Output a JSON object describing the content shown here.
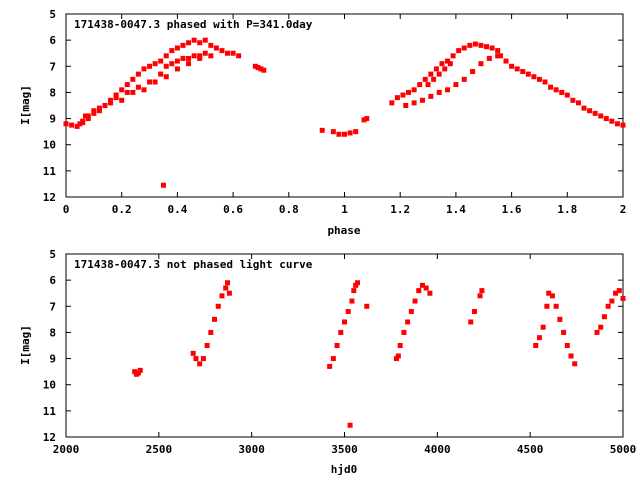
{
  "chart_data": [
    {
      "type": "scatter",
      "title": "171438-0047.3 phased with P=341.0day",
      "xlabel": "phase",
      "ylabel": "I[mag]",
      "xlim": [
        0,
        2
      ],
      "ylim": [
        5,
        12
      ],
      "y_inverted": true,
      "xticks": [
        "0",
        "0.2",
        "0.4",
        "0.6",
        "0.8",
        "1",
        "1.2",
        "1.4",
        "1.6",
        "1.8",
        "2"
      ],
      "yticks": [
        "5",
        "6",
        "7",
        "8",
        "9",
        "10",
        "11",
        "12"
      ],
      "color": "#ff0000",
      "series": [
        {
          "x": [
            0.0,
            0.02,
            0.04,
            0.05,
            0.06,
            0.07,
            0.08,
            0.1,
            0.12,
            0.14,
            0.16,
            0.18,
            0.2,
            0.22,
            0.24,
            0.26,
            0.28,
            0.3,
            0.32,
            0.34,
            0.36,
            0.38,
            0.4,
            0.42,
            0.44,
            0.46,
            0.48,
            0.5,
            0.52,
            0.54,
            0.56,
            0.58,
            0.6,
            0.62,
            0.34,
            0.36,
            0.38,
            0.4,
            0.42,
            0.44,
            0.46,
            0.48,
            0.5,
            0.2,
            0.24,
            0.28,
            0.32,
            0.36,
            0.4,
            0.44,
            0.48,
            0.52,
            0.06,
            0.08,
            0.1,
            0.12,
            0.14,
            0.16,
            0.18,
            0.22,
            0.26,
            0.3,
            0.68,
            0.69,
            0.7,
            0.71,
            0.35,
            0.92,
            0.96,
            0.98,
            1.0,
            1.02,
            1.04,
            1.07,
            1.08,
            1.17,
            1.19,
            1.21,
            1.23,
            1.25,
            1.27,
            1.29,
            1.31,
            1.33,
            1.35,
            1.37,
            1.39,
            1.41,
            1.43,
            1.45,
            1.47,
            1.49,
            1.51,
            1.53,
            1.55,
            1.22,
            1.25,
            1.28,
            1.31,
            1.34,
            1.37,
            1.4,
            1.43,
            1.46,
            1.49,
            1.52,
            1.55,
            1.3,
            1.32,
            1.34,
            1.36,
            1.38,
            1.56,
            1.58,
            1.6,
            1.62,
            1.64,
            1.66,
            1.68,
            1.7,
            1.72,
            1.74,
            1.76,
            1.78,
            1.8,
            1.82,
            1.84,
            1.86,
            1.88,
            1.9,
            1.92,
            1.94,
            1.96,
            1.98,
            2.0
          ],
          "y": [
            9.2,
            9.25,
            9.3,
            9.2,
            9.15,
            8.9,
            9.0,
            8.8,
            8.7,
            8.5,
            8.3,
            8.1,
            7.9,
            7.7,
            7.5,
            7.3,
            7.1,
            7.0,
            6.9,
            6.8,
            6.6,
            6.4,
            6.3,
            6.2,
            6.1,
            6.0,
            6.1,
            6.0,
            6.2,
            6.3,
            6.4,
            6.5,
            6.5,
            6.6,
            7.3,
            7.0,
            6.9,
            6.8,
            6.7,
            6.7,
            6.6,
            6.6,
            6.5,
            8.3,
            8.0,
            7.9,
            7.6,
            7.4,
            7.1,
            6.9,
            6.7,
            6.6,
            9.1,
            8.9,
            8.7,
            8.6,
            8.5,
            8.4,
            8.2,
            8.0,
            7.8,
            7.6,
            7.0,
            7.05,
            7.1,
            7.15,
            11.55,
            9.45,
            9.5,
            9.6,
            9.6,
            9.55,
            9.5,
            9.05,
            9.0,
            8.4,
            8.2,
            8.1,
            8.0,
            7.9,
            7.7,
            7.5,
            7.3,
            7.1,
            6.9,
            6.8,
            6.6,
            6.4,
            6.3,
            6.2,
            6.15,
            6.2,
            6.25,
            6.3,
            6.4,
            8.5,
            8.4,
            8.3,
            8.15,
            8.0,
            7.9,
            7.7,
            7.5,
            7.2,
            6.9,
            6.7,
            6.6,
            7.7,
            7.5,
            7.3,
            7.1,
            6.9,
            6.6,
            6.8,
            7.0,
            7.1,
            7.2,
            7.3,
            7.4,
            7.5,
            7.6,
            7.8,
            7.9,
            8.0,
            8.1,
            8.3,
            8.4,
            8.6,
            8.7,
            8.8,
            8.9,
            9.0,
            9.1,
            9.2,
            9.25
          ]
        }
      ]
    },
    {
      "type": "scatter",
      "title": "171438-0047.3 not phased light curve",
      "xlabel": "hjd0",
      "ylabel": "I[mag]",
      "xlim": [
        2000,
        5000
      ],
      "ylim": [
        5,
        12
      ],
      "y_inverted": true,
      "xticks": [
        "2000",
        "2500",
        "3000",
        "3500",
        "4000",
        "4500",
        "5000"
      ],
      "yticks": [
        "5",
        "6",
        "7",
        "8",
        "9",
        "10",
        "11",
        "12"
      ],
      "color": "#ff0000",
      "series": [
        {
          "x": [
            2370,
            2380,
            2390,
            2400,
            2685,
            2700,
            2720,
            2740,
            2760,
            2780,
            2800,
            2820,
            2840,
            2860,
            2870,
            2880,
            3420,
            3440,
            3460,
            3480,
            3500,
            3520,
            3540,
            3550,
            3560,
            3570,
            3530,
            3620,
            3780,
            3790,
            3800,
            3820,
            3840,
            3860,
            3880,
            3900,
            3920,
            3940,
            3960,
            4180,
            4200,
            4230,
            4240,
            4530,
            4550,
            4570,
            4590,
            4600,
            4620,
            4640,
            4660,
            4680,
            4700,
            4720,
            4740,
            4860,
            4880,
            4900,
            4920,
            4940,
            4960,
            4980,
            5000
          ],
          "y": [
            9.5,
            9.6,
            9.55,
            9.45,
            8.8,
            9.0,
            9.2,
            9.0,
            8.5,
            8.0,
            7.5,
            7.0,
            6.6,
            6.3,
            6.1,
            6.5,
            9.3,
            9.0,
            8.5,
            8.0,
            7.6,
            7.2,
            6.8,
            6.4,
            6.2,
            6.1,
            11.55,
            7.0,
            9.0,
            8.9,
            8.5,
            8.0,
            7.6,
            7.2,
            6.8,
            6.4,
            6.2,
            6.3,
            6.5,
            7.6,
            7.2,
            6.6,
            6.4,
            8.5,
            8.2,
            7.8,
            7.0,
            6.5,
            6.6,
            7.0,
            7.5,
            8.0,
            8.5,
            8.9,
            9.2,
            8.0,
            7.8,
            7.4,
            7.0,
            6.8,
            6.5,
            6.4,
            6.7
          ]
        }
      ]
    }
  ]
}
